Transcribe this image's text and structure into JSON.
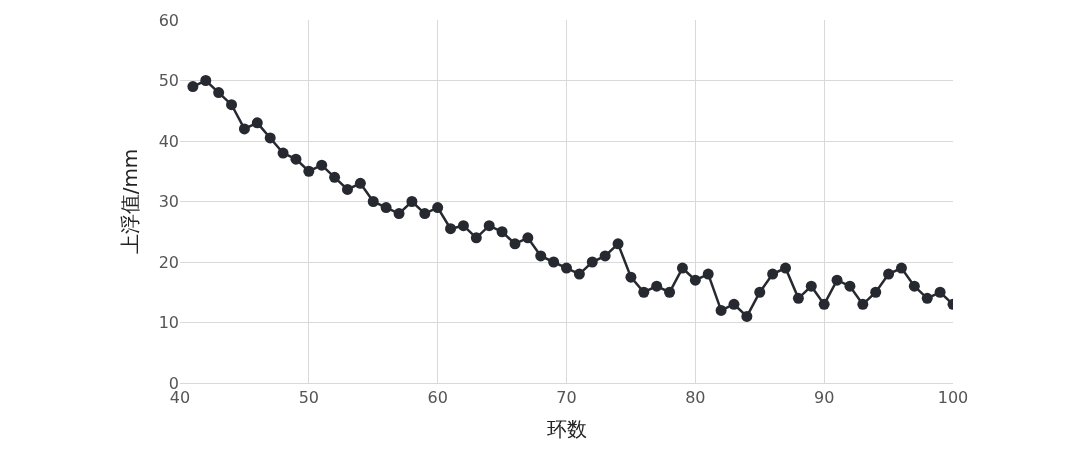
{
  "chart_data": {
    "type": "line",
    "xlabel": "环数",
    "ylabel": "上浮值/mm",
    "x": [
      41,
      42,
      43,
      44,
      45,
      46,
      47,
      48,
      49,
      50,
      51,
      52,
      53,
      54,
      55,
      56,
      57,
      58,
      59,
      60,
      61,
      62,
      63,
      64,
      65,
      66,
      67,
      68,
      69,
      70,
      71,
      72,
      73,
      74,
      75,
      76,
      77,
      78,
      79,
      80,
      81,
      82,
      83,
      84,
      85,
      86,
      87,
      88,
      89,
      90,
      91,
      92,
      93,
      94,
      95,
      96,
      97,
      98,
      99,
      100
    ],
    "series": [
      {
        "color": "#262a30",
        "values": [
          49,
          50,
          48,
          46,
          42,
          43,
          40.5,
          38,
          37,
          35,
          36,
          34,
          32,
          33,
          30,
          29,
          28,
          30,
          28,
          29,
          25.5,
          26,
          24,
          26,
          25,
          23,
          24,
          21,
          20,
          19,
          18,
          20,
          21,
          23,
          17.5,
          15,
          16,
          15,
          19,
          17,
          18,
          12,
          13,
          11,
          15,
          18,
          19,
          14,
          16,
          13,
          17,
          16,
          13,
          15,
          18,
          19,
          16,
          14,
          15,
          13
        ]
      }
    ],
    "xlim": [
      40,
      100
    ],
    "xticks": [
      40,
      50,
      60,
      70,
      80,
      90,
      100
    ],
    "ylim": [
      0,
      60
    ],
    "yticks": [
      0,
      10,
      20,
      30,
      40,
      50,
      60
    ],
    "grid": true,
    "marker": "circle",
    "line_style": "solid",
    "legend": false
  }
}
